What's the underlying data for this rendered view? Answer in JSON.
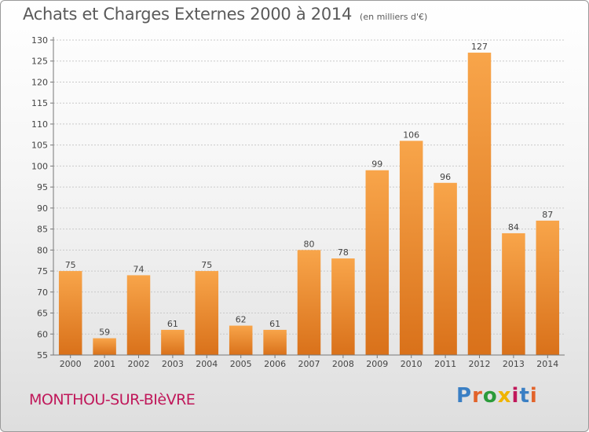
{
  "header": {
    "title": "Achats et Charges Externes 2000 à 2014",
    "subtitle": "(en milliers d'€)"
  },
  "footer": {
    "city": "MONTHOU-SUR-BIèVRE",
    "logo": "Proxiti",
    "logo_colors": [
      "#3a7fc4",
      "#e2632a",
      "#2b9b3a",
      "#f0b400",
      "#c0185a",
      "#3a7fc4",
      "#e2632a"
    ]
  },
  "chart_data": {
    "type": "bar",
    "categories": [
      "2000",
      "2001",
      "2002",
      "2003",
      "2004",
      "2005",
      "2006",
      "2007",
      "2008",
      "2009",
      "2010",
      "2011",
      "2012",
      "2013",
      "2014"
    ],
    "values": [
      75,
      59,
      74,
      61,
      75,
      62,
      61,
      80,
      78,
      99,
      106,
      96,
      127,
      84,
      87
    ],
    "title": "Achats et Charges Externes 2000 à 2014",
    "xlabel": "",
    "ylabel": "",
    "ylim": [
      55,
      130
    ],
    "yticks": [
      55,
      60,
      65,
      70,
      75,
      80,
      85,
      90,
      95,
      100,
      105,
      110,
      115,
      120,
      125,
      130
    ],
    "grid": true,
    "bar_color": "#f0922e"
  }
}
